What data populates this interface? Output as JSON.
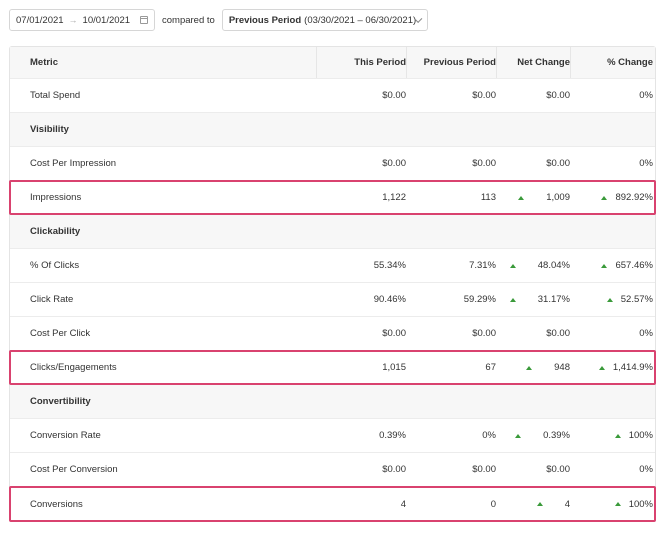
{
  "filters": {
    "start_date": "07/01/2021",
    "arrow": "→",
    "end_date": "10/01/2021",
    "compared_to": "compared to",
    "period_label": "Previous Period",
    "period_range": "(03/30/2021 – 06/30/2021)"
  },
  "columns": {
    "metric": "Metric",
    "this_period": "This Period",
    "previous_period": "Previous Period",
    "net_change": "Net Change",
    "pct_change": "% Change"
  },
  "rows": [
    {
      "type": "data",
      "metric": "Total Spend",
      "this": "$0.00",
      "prev": "$0.00",
      "net": "$0.00",
      "pct": "0%",
      "net_up": false,
      "pct_up": false,
      "highlight": false
    },
    {
      "type": "section",
      "metric": "Visibility"
    },
    {
      "type": "data",
      "metric": "Cost Per Impression",
      "this": "$0.00",
      "prev": "$0.00",
      "net": "$0.00",
      "pct": "0%",
      "net_up": false,
      "pct_up": false,
      "highlight": false
    },
    {
      "type": "data",
      "metric": "Impressions",
      "this": "1,122",
      "prev": "113",
      "net": "1,009",
      "pct": "892.92%",
      "net_up": true,
      "pct_up": true,
      "highlight": true
    },
    {
      "type": "section",
      "metric": "Clickability"
    },
    {
      "type": "data",
      "metric": "% Of Clicks",
      "this": "55.34%",
      "prev": "7.31%",
      "net": "48.04%",
      "pct": "657.46%",
      "net_up": true,
      "pct_up": true,
      "highlight": false
    },
    {
      "type": "data",
      "metric": "Click Rate",
      "this": "90.46%",
      "prev": "59.29%",
      "net": "31.17%",
      "pct": "52.57%",
      "net_up": true,
      "pct_up": true,
      "highlight": false
    },
    {
      "type": "data",
      "metric": "Cost Per Click",
      "this": "$0.00",
      "prev": "$0.00",
      "net": "$0.00",
      "pct": "0%",
      "net_up": false,
      "pct_up": false,
      "highlight": false
    },
    {
      "type": "data",
      "metric": "Clicks/Engagements",
      "this": "1,015",
      "prev": "67",
      "net": "948",
      "pct": "1,414.9%",
      "net_up": true,
      "pct_up": true,
      "highlight": true
    },
    {
      "type": "section",
      "metric": "Convertibility"
    },
    {
      "type": "data",
      "metric": "Conversion Rate",
      "this": "0.39%",
      "prev": "0%",
      "net": "0.39%",
      "pct": "100%",
      "net_up": true,
      "pct_up": true,
      "highlight": false
    },
    {
      "type": "data",
      "metric": "Cost Per Conversion",
      "this": "$0.00",
      "prev": "$0.00",
      "net": "$0.00",
      "pct": "0%",
      "net_up": false,
      "pct_up": false,
      "highlight": false
    },
    {
      "type": "data",
      "metric": "Conversions",
      "this": "4",
      "prev": "0",
      "net": "4",
      "pct": "100%",
      "net_up": true,
      "pct_up": true,
      "highlight": true
    }
  ],
  "colors": {
    "highlight_border": "#d9426f",
    "up_arrow": "#3a9a3a"
  },
  "icons": {
    "calendar": "calendar-icon",
    "chevron": "chevron-down-icon",
    "up": "arrow-up-icon"
  }
}
